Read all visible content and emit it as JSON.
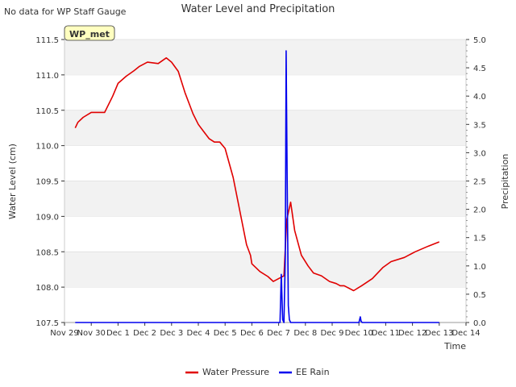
{
  "chart_data": {
    "type": "line",
    "title": "Water Level and Precipitation",
    "corner_note": "No data for WP Staff Gauge",
    "station_badge": "WP_met",
    "xlabel": "Time",
    "ylabel_left": "Water Level (cm)",
    "ylabel_right": "Precipitation",
    "x_ticks": [
      "Nov 29",
      "Nov 30",
      "Dec 1",
      "Dec 2",
      "Dec 3",
      "Dec 4",
      "Dec 5",
      "Dec 6",
      "Dec 7",
      "Dec 8",
      "Dec 9",
      "Dec 10",
      "Dec 11",
      "Dec 12",
      "Dec 13",
      "Dec 14"
    ],
    "xlim_days": [
      0,
      15
    ],
    "ylim_left": [
      107.5,
      111.5
    ],
    "y_ticks_left": [
      "107.5",
      "108.0",
      "108.5",
      "109.0",
      "109.5",
      "110.0",
      "110.5",
      "111.0",
      "111.5"
    ],
    "ylim_right": [
      0.0,
      5.0
    ],
    "y_ticks_right": [
      "0.0",
      "0.5",
      "1.0",
      "1.5",
      "2.0",
      "2.5",
      "3.0",
      "3.5",
      "4.0",
      "4.5",
      "5.0"
    ],
    "grid": "horizontal bands",
    "legend_position": "bottom-center",
    "series": [
      {
        "name": "Water Pressure",
        "axis": "left",
        "color": "#e00000",
        "x": [
          0.4,
          0.5,
          0.7,
          1.0,
          1.5,
          1.8,
          2.0,
          2.3,
          2.6,
          2.8,
          3.1,
          3.5,
          3.8,
          4.0,
          4.25,
          4.5,
          4.8,
          5.0,
          5.2,
          5.4,
          5.6,
          5.8,
          6.0,
          6.3,
          6.8,
          6.95,
          7.0,
          7.3,
          7.6,
          7.8,
          8.0,
          8.2,
          8.3,
          8.45,
          8.6,
          8.85,
          9.1,
          9.3,
          9.6,
          9.9,
          10.15,
          10.3,
          10.45,
          10.8,
          11.1,
          11.5,
          11.9,
          12.2,
          12.7,
          13.1,
          13.6,
          14.0
        ],
        "values": [
          110.25,
          110.33,
          110.4,
          110.47,
          110.47,
          110.7,
          110.88,
          110.98,
          111.06,
          111.12,
          111.18,
          111.16,
          111.24,
          111.18,
          111.05,
          110.75,
          110.45,
          110.3,
          110.2,
          110.1,
          110.05,
          110.05,
          109.96,
          109.55,
          108.6,
          108.45,
          108.33,
          108.22,
          108.15,
          108.08,
          108.12,
          108.16,
          108.95,
          109.2,
          108.8,
          108.45,
          108.3,
          108.2,
          108.16,
          108.08,
          108.05,
          108.02,
          108.02,
          107.95,
          108.02,
          108.12,
          108.28,
          108.36,
          108.42,
          108.5,
          108.58,
          108.64
        ]
      },
      {
        "name": "EE Rain",
        "axis": "right",
        "color": "#0000ee",
        "x": [
          0.4,
          8.05,
          8.1,
          8.15,
          8.2,
          8.25,
          8.28,
          8.32,
          8.36,
          8.4,
          8.45,
          8.5,
          11.0,
          11.05,
          11.08,
          11.12,
          14.0
        ],
        "values": [
          0.0,
          0.0,
          0.85,
          0.05,
          0.0,
          1.2,
          4.8,
          2.5,
          0.3,
          0.05,
          0.0,
          0.0,
          0.0,
          0.1,
          0.02,
          0.0,
          0.0
        ]
      }
    ]
  }
}
